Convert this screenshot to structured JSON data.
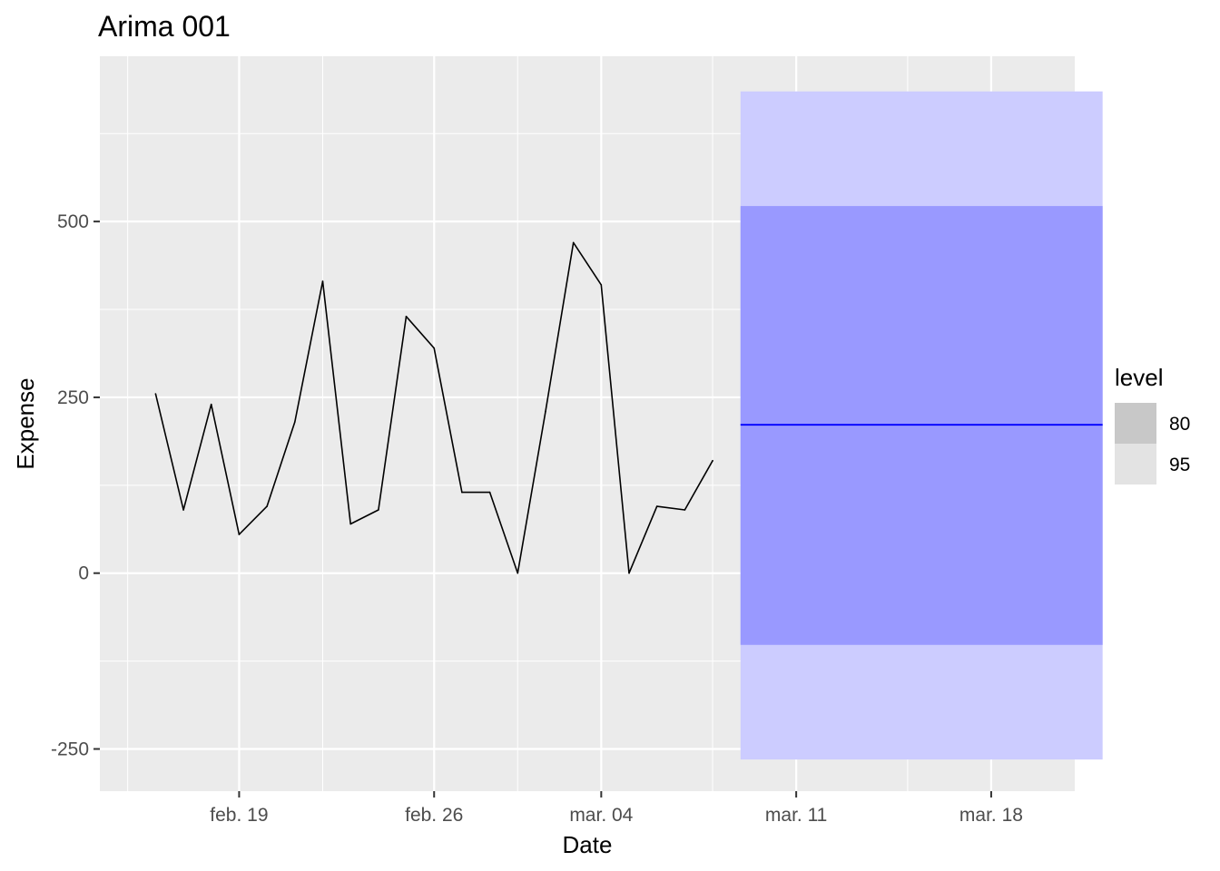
{
  "chart_data": {
    "type": "line",
    "title": "Arima 001",
    "xlabel": "Date",
    "ylabel": "Expense",
    "x_ticks": [
      {
        "date": "2018-02-19",
        "label": "feb. 19"
      },
      {
        "date": "2018-02-26",
        "label": "feb. 26"
      },
      {
        "date": "2018-03-04",
        "label": "mar. 04"
      },
      {
        "date": "2018-03-11",
        "label": "mar. 11"
      },
      {
        "date": "2018-03-18",
        "label": "mar. 18"
      }
    ],
    "y_ticks": [
      -250,
      0,
      250,
      500
    ],
    "ylim": [
      -310,
      735
    ],
    "xlim": [
      "2018-02-14",
      "2018-03-21"
    ],
    "grid": true,
    "legend_position": "right",
    "observed": {
      "x": [
        "2018-02-16",
        "2018-02-17",
        "2018-02-18",
        "2018-02-19",
        "2018-02-20",
        "2018-02-21",
        "2018-02-22",
        "2018-02-23",
        "2018-02-24",
        "2018-02-25",
        "2018-02-26",
        "2018-02-27",
        "2018-02-28",
        "2018-03-01",
        "2018-03-02",
        "2018-03-03",
        "2018-03-04",
        "2018-03-05",
        "2018-03-06",
        "2018-03-07",
        "2018-03-08"
      ],
      "y": [
        255,
        90,
        240,
        55,
        95,
        215,
        415,
        70,
        90,
        365,
        320,
        115,
        115,
        0,
        230,
        470,
        410,
        0,
        95,
        90,
        160
      ]
    },
    "forecast": {
      "x_start": "2018-03-09",
      "x_end": "2018-03-22",
      "mean": 211,
      "color": "#0000ff",
      "intervals": [
        {
          "level": "95",
          "lower": -265,
          "upper": 685,
          "color": "#ccccff"
        },
        {
          "level": "80",
          "lower": -102,
          "upper": 522,
          "color": "#9999ff"
        }
      ]
    },
    "legend": {
      "title": "level",
      "entries": [
        {
          "label": "80",
          "color": "#c8c8c8"
        },
        {
          "label": "95",
          "color": "#e3e3e3"
        }
      ]
    },
    "colors": {
      "panel": "#ebebeb",
      "grid_major": "#ffffff",
      "observed_line": "#000000"
    }
  }
}
